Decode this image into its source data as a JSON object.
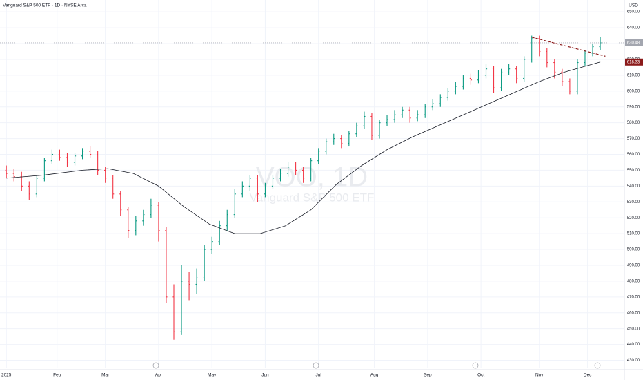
{
  "chart_data": {
    "type": "ohlc",
    "title": "Vanguard S&P 500 ETF · 1D · NYSE Arca",
    "watermark_symbol": "VOO, 1D",
    "watermark_name": "Vanguard S&P 500 ETF",
    "currency": "USD",
    "up_color": "#089981",
    "down_color": "#f23645",
    "grid": true,
    "xlim": [
      -2.5,
      243.5
    ],
    "ylim": [
      425,
      654
    ],
    "xticks": [
      {
        "value": 0,
        "label": "2025"
      },
      {
        "value": 20,
        "label": "Feb"
      },
      {
        "value": 39,
        "label": "Mar"
      },
      {
        "value": 60,
        "label": "Apr"
      },
      {
        "value": 81,
        "label": "May"
      },
      {
        "value": 102,
        "label": "Jun"
      },
      {
        "value": 123,
        "label": "Jul"
      },
      {
        "value": 145,
        "label": "Aug"
      },
      {
        "value": 166,
        "label": "Sep"
      },
      {
        "value": 187,
        "label": "Oct"
      },
      {
        "value": 210,
        "label": "Nov"
      },
      {
        "value": 229,
        "label": "Dec"
      }
    ],
    "yticks": [
      {
        "value": 430,
        "label": "430.00"
      },
      {
        "value": 440,
        "label": "440.00"
      },
      {
        "value": 450,
        "label": "450.00"
      },
      {
        "value": 460,
        "label": "460.00"
      },
      {
        "value": 470,
        "label": "470.00"
      },
      {
        "value": 480,
        "label": "480.00"
      },
      {
        "value": 490,
        "label": "490.00"
      },
      {
        "value": 500,
        "label": "500.00"
      },
      {
        "value": 510,
        "label": "510.00"
      },
      {
        "value": 520,
        "label": "520.00"
      },
      {
        "value": 530,
        "label": "530.00"
      },
      {
        "value": 540,
        "label": "540.00"
      },
      {
        "value": 550,
        "label": "550.00"
      },
      {
        "value": 560,
        "label": "560.00"
      },
      {
        "value": 570,
        "label": "570.00"
      },
      {
        "value": 580,
        "label": "580.00"
      },
      {
        "value": 590,
        "label": "590.00"
      },
      {
        "value": 600,
        "label": "600.00"
      },
      {
        "value": 610,
        "label": "610.00"
      },
      {
        "value": 620,
        "label": "620.00"
      },
      {
        "value": 630,
        "label": "630.00"
      },
      {
        "value": 640,
        "label": "640.00"
      },
      {
        "value": 650,
        "label": "650.00"
      }
    ],
    "bar_step": 3,
    "open": [
      550,
      548,
      546,
      540,
      535,
      545,
      556,
      560,
      558,
      555,
      559,
      562,
      560,
      550,
      545,
      535,
      525,
      512,
      518,
      522,
      528,
      512,
      470,
      448,
      480,
      478,
      482,
      500,
      505,
      515,
      522,
      535,
      540,
      545,
      535,
      540,
      545,
      548,
      552,
      550,
      545,
      556,
      562,
      568,
      570,
      567,
      573,
      578,
      584,
      572,
      580,
      582,
      585,
      588,
      583,
      585,
      590,
      592,
      596,
      600,
      603,
      608,
      607,
      610,
      614,
      602,
      612,
      614,
      608,
      620,
      633,
      625,
      618,
      612,
      606,
      600,
      618,
      624,
      628
    ],
    "high": [
      553,
      551,
      549,
      543,
      547,
      558,
      563,
      563,
      561,
      561,
      564,
      565,
      562,
      552,
      547,
      537,
      527,
      521,
      525,
      532,
      530,
      514,
      478,
      490,
      486,
      488,
      503,
      508,
      518,
      525,
      538,
      543,
      547,
      547,
      542,
      547,
      551,
      555,
      555,
      552,
      558,
      564,
      570,
      573,
      572,
      575,
      580,
      587,
      586,
      582,
      585,
      588,
      590,
      590,
      588,
      592,
      595,
      598,
      602,
      606,
      610,
      611,
      613,
      617,
      616,
      614,
      617,
      616,
      622,
      635,
      635,
      627,
      620,
      614,
      608,
      620,
      626,
      630,
      634
    ],
    "low": [
      545,
      543,
      537,
      531,
      533,
      543,
      554,
      556,
      552,
      553,
      557,
      558,
      547,
      542,
      532,
      521,
      507,
      509,
      515,
      520,
      505,
      466,
      443,
      446,
      468,
      472,
      480,
      497,
      503,
      512,
      520,
      533,
      537,
      530,
      533,
      538,
      543,
      546,
      547,
      542,
      543,
      554,
      560,
      566,
      564,
      565,
      571,
      576,
      569,
      570,
      578,
      580,
      583,
      580,
      581,
      583,
      588,
      590,
      594,
      598,
      601,
      604,
      605,
      608,
      599,
      600,
      610,
      605,
      606,
      618,
      622,
      615,
      608,
      603,
      598,
      598,
      616,
      622,
      626
    ],
    "close": [
      548,
      546,
      540,
      535,
      545,
      556,
      560,
      558,
      555,
      559,
      562,
      560,
      550,
      545,
      535,
      525,
      512,
      518,
      522,
      528,
      512,
      470,
      448,
      480,
      478,
      482,
      500,
      505,
      515,
      522,
      535,
      540,
      545,
      535,
      540,
      545,
      548,
      552,
      550,
      545,
      556,
      562,
      568,
      570,
      567,
      573,
      578,
      584,
      572,
      580,
      582,
      585,
      588,
      583,
      585,
      590,
      592,
      596,
      600,
      603,
      608,
      607,
      610,
      614,
      602,
      612,
      614,
      608,
      620,
      633,
      625,
      618,
      612,
      606,
      600,
      618,
      624,
      628,
      630.48
    ],
    "moving_average": {
      "color": "#131722",
      "x": [
        0,
        15,
        30,
        40,
        50,
        60,
        70,
        80,
        90,
        100,
        110,
        120,
        130,
        140,
        150,
        160,
        170,
        180,
        190,
        200,
        210,
        220,
        234
      ],
      "values": [
        545,
        547,
        550,
        551,
        548,
        540,
        527,
        516,
        510,
        510,
        515,
        525,
        541,
        553,
        563,
        571,
        578,
        585,
        592,
        599,
        606,
        612,
        618.33
      ]
    },
    "trendline": {
      "color": "#8b1a1a",
      "x": [
        207,
        236
      ],
      "values": [
        634,
        622
      ]
    },
    "last_price": 630.48,
    "last_price_color": "#a3a6af",
    "ma_last_color": "#8b1a1a"
  }
}
